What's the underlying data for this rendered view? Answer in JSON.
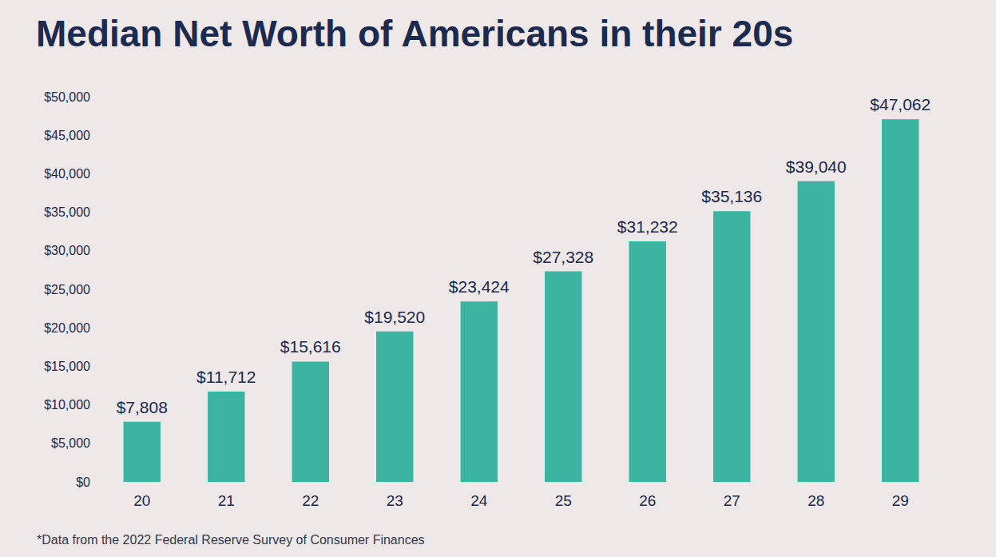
{
  "chart_data": {
    "type": "bar",
    "title": "Median Net Worth of Americans in their 20s",
    "annotations": [
      "*Data from the 2022 Federal Reserve Survey of Consumer Finances"
    ],
    "categories": [
      "20",
      "21",
      "22",
      "23",
      "24",
      "25",
      "26",
      "27",
      "28",
      "29"
    ],
    "values": [
      7808,
      11712,
      15616,
      19520,
      23424,
      27328,
      31232,
      35136,
      39040,
      47062
    ],
    "value_labels": [
      "$7,808",
      "$11,712",
      "$15,616",
      "$19,520",
      "$23,424",
      "$27,328",
      "$31,232",
      "$35,136",
      "$39,040",
      "$47,062"
    ],
    "data_labels": true,
    "color": "#3bb5a1",
    "ylim": [
      0,
      50000
    ],
    "yticks": [
      {
        "value": 0,
        "label": "$0"
      },
      {
        "value": 5000,
        "label": "$5,000"
      },
      {
        "value": 10000,
        "label": "$10,000"
      },
      {
        "value": 15000,
        "label": "$15,000"
      },
      {
        "value": 20000,
        "label": "$20,000"
      },
      {
        "value": 25000,
        "label": "$25,000"
      },
      {
        "value": 30000,
        "label": "$30,000"
      },
      {
        "value": 35000,
        "label": "$35,000"
      },
      {
        "value": 40000,
        "label": "$40,000"
      },
      {
        "value": 45000,
        "label": "$45,000"
      },
      {
        "value": 50000,
        "label": "$50,000"
      }
    ],
    "grid": false
  }
}
